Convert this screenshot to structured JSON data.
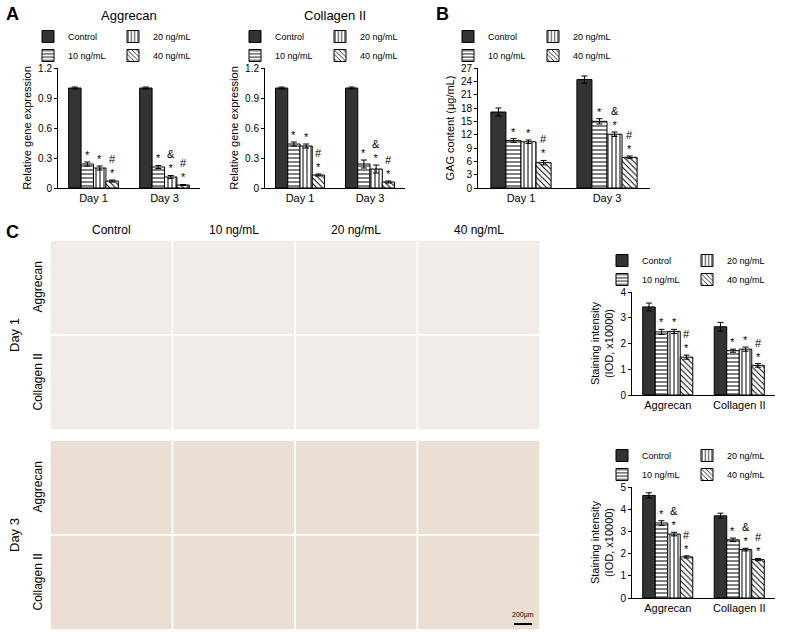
{
  "panel_labels": [
    "A",
    "B",
    "C"
  ],
  "image_panel": {
    "columns": [
      "Control",
      "10 ng/mL",
      "20 ng/mL",
      "40 ng/mL"
    ],
    "days": [
      {
        "label": "Day 1",
        "rows": [
          "Aggrecan",
          "Collagen II"
        ]
      },
      {
        "label": "Day 3",
        "rows": [
          "Aggrecan",
          "Collagen II"
        ]
      }
    ],
    "scale_bar": "200μm"
  },
  "chart_data": [
    {
      "type": "bar",
      "title": "Aggrecan",
      "y_label": [
        "Relative gene expression"
      ],
      "categories": [
        "Day 1",
        "Day 3"
      ],
      "ylim": [
        0,
        1.2
      ],
      "yticks": [
        0,
        0.3,
        0.6,
        0.9,
        1.2
      ],
      "grid": false,
      "legend": "top",
      "series": [
        {
          "name": "Control",
          "color": "#333333",
          "marker": "solid",
          "values": [
            1.0,
            1.0
          ],
          "errors": [
            0.01,
            0.01
          ],
          "significance": [
            [],
            []
          ]
        },
        {
          "name": "10 ng/mL",
          "color": "#ffffff",
          "marker": "horizontal",
          "values": [
            0.24,
            0.21
          ],
          "errors": [
            0.02,
            0.015
          ],
          "significance": [
            [
              "*"
            ],
            [
              "*"
            ]
          ]
        },
        {
          "name": "20 ng/mL",
          "color": "#ffffff",
          "marker": "vertical",
          "values": [
            0.2,
            0.11
          ],
          "errors": [
            0.02,
            0.015
          ],
          "significance": [
            [
              "*"
            ],
            [
              "&",
              "*"
            ]
          ]
        },
        {
          "name": "40 ng/mL",
          "color": "#ffffff",
          "marker": "diagonal",
          "values": [
            0.07,
            0.03
          ],
          "errors": [
            0.01,
            0.005
          ],
          "significance": [
            [
              "#",
              "*"
            ],
            [
              "#",
              "*"
            ]
          ]
        }
      ]
    },
    {
      "type": "bar",
      "title": "Collagen II",
      "y_label": [
        "Relative gene expression"
      ],
      "categories": [
        "Day 1",
        "Day 3"
      ],
      "ylim": [
        0,
        1.2
      ],
      "yticks": [
        0,
        0.3,
        0.6,
        0.9,
        1.2
      ],
      "grid": false,
      "legend": "top",
      "series": [
        {
          "name": "Control",
          "color": "#333333",
          "marker": "solid",
          "values": [
            1.0,
            1.0
          ],
          "errors": [
            0.01,
            0.01
          ],
          "significance": [
            [],
            []
          ]
        },
        {
          "name": "10 ng/mL",
          "color": "#ffffff",
          "marker": "horizontal",
          "values": [
            0.44,
            0.24
          ],
          "errors": [
            0.02,
            0.04
          ],
          "significance": [
            [
              "*"
            ],
            [
              "*"
            ]
          ]
        },
        {
          "name": "20 ng/mL",
          "color": "#ffffff",
          "marker": "vertical",
          "values": [
            0.42,
            0.19
          ],
          "errors": [
            0.02,
            0.04
          ],
          "significance": [
            [
              "*"
            ],
            [
              "&",
              "*"
            ]
          ]
        },
        {
          "name": "40 ng/mL",
          "color": "#ffffff",
          "marker": "diagonal",
          "values": [
            0.13,
            0.06
          ],
          "errors": [
            0.01,
            0.01
          ],
          "significance": [
            [
              "#",
              "*"
            ],
            [
              "#",
              "*"
            ]
          ]
        }
      ]
    },
    {
      "type": "bar",
      "y_label": [
        "GAG content (μg/mL)"
      ],
      "categories": [
        "Day 1",
        "Day 3"
      ],
      "ylim": [
        0,
        27
      ],
      "yticks": [
        0,
        3,
        6,
        9,
        12,
        15,
        18,
        21,
        24,
        27
      ],
      "grid": false,
      "legend": "top",
      "series": [
        {
          "name": "Control",
          "color": "#333333",
          "marker": "solid",
          "values": [
            17.1,
            24.4
          ],
          "errors": [
            0.9,
            0.8
          ],
          "significance": [
            [],
            []
          ]
        },
        {
          "name": "10 ng/mL",
          "color": "#ffffff",
          "marker": "horizontal",
          "values": [
            10.7,
            15.0
          ],
          "errors": [
            0.4,
            0.6
          ],
          "significance": [
            [
              "*"
            ],
            [
              "*"
            ]
          ]
        },
        {
          "name": "20 ng/mL",
          "color": "#ffffff",
          "marker": "vertical",
          "values": [
            10.4,
            12.1
          ],
          "errors": [
            0.4,
            0.5
          ],
          "significance": [
            [
              "*"
            ],
            [
              "&",
              "*"
            ]
          ]
        },
        {
          "name": "40 ng/mL",
          "color": "#ffffff",
          "marker": "diagonal",
          "values": [
            5.7,
            6.9
          ],
          "errors": [
            0.5,
            0.3
          ],
          "significance": [
            [
              "#",
              "*"
            ],
            [
              "#",
              "*"
            ]
          ]
        }
      ]
    },
    {
      "type": "bar",
      "y_label": [
        "Staining intensity",
        "(IOD, x10000)"
      ],
      "categories": [
        "Aggrecan",
        "Collagen II"
      ],
      "ylim": [
        0,
        4
      ],
      "yticks": [
        0,
        1,
        2,
        3,
        4
      ],
      "grid": false,
      "legend": "top",
      "series": [
        {
          "name": "Control",
          "color": "#333333",
          "marker": "solid",
          "values": [
            3.42,
            2.65
          ],
          "errors": [
            0.15,
            0.17
          ],
          "significance": [
            [],
            []
          ]
        },
        {
          "name": "10 ng/mL",
          "color": "#ffffff",
          "marker": "horizontal",
          "values": [
            2.45,
            1.72
          ],
          "errors": [
            0.1,
            0.06
          ],
          "significance": [
            [
              "*"
            ],
            [
              "*"
            ]
          ]
        },
        {
          "name": "20 ng/mL",
          "color": "#ffffff",
          "marker": "vertical",
          "values": [
            2.47,
            1.78
          ],
          "errors": [
            0.08,
            0.08
          ],
          "significance": [
            [
              "*"
            ],
            [
              "*"
            ]
          ]
        },
        {
          "name": "40 ng/mL",
          "color": "#ffffff",
          "marker": "diagonal",
          "values": [
            1.47,
            1.15
          ],
          "errors": [
            0.08,
            0.07
          ],
          "significance": [
            [
              "#",
              "*"
            ],
            [
              "#",
              "*"
            ]
          ]
        }
      ]
    },
    {
      "type": "bar",
      "y_label": [
        "Staining intensity",
        "(IOD, x10000)"
      ],
      "categories": [
        "Aggrecan",
        "Collagen II"
      ],
      "ylim": [
        0,
        5
      ],
      "yticks": [
        0,
        1,
        2,
        3,
        4,
        5
      ],
      "grid": false,
      "legend": "top",
      "series": [
        {
          "name": "Control",
          "color": "#333333",
          "marker": "solid",
          "values": [
            4.62,
            3.7
          ],
          "errors": [
            0.12,
            0.12
          ],
          "significance": [
            [],
            []
          ]
        },
        {
          "name": "10 ng/mL",
          "color": "#ffffff",
          "marker": "horizontal",
          "values": [
            3.38,
            2.62
          ],
          "errors": [
            0.1,
            0.08
          ],
          "significance": [
            [
              "*"
            ],
            [
              "*"
            ]
          ]
        },
        {
          "name": "20 ng/mL",
          "color": "#ffffff",
          "marker": "vertical",
          "values": [
            2.88,
            2.18
          ],
          "errors": [
            0.08,
            0.06
          ],
          "significance": [
            [
              "&",
              "*"
            ],
            [
              "&",
              "*"
            ]
          ]
        },
        {
          "name": "40 ng/mL",
          "color": "#ffffff",
          "marker": "diagonal",
          "values": [
            1.85,
            1.73
          ],
          "errors": [
            0.05,
            0.05
          ],
          "significance": [
            [
              "#",
              "*"
            ],
            [
              "#",
              "*"
            ]
          ]
        }
      ]
    }
  ]
}
